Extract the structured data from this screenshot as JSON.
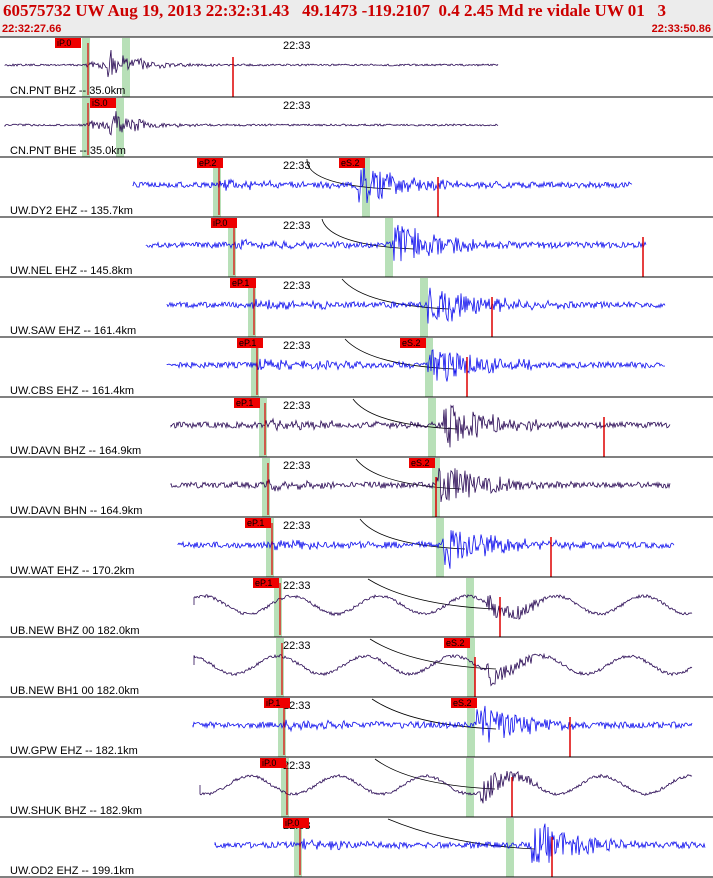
{
  "header": {
    "title": "60575732 UW Aug 19, 2013 22:32:31.43   49.1473 -119.2107  0.4 2.45 Md re vidale UW 01   3",
    "start_time": "22:32:27.66",
    "end_time": "22:33:50.86"
  },
  "time_tick_label": "22:33",
  "colors": {
    "trace_blue": "#1010ee",
    "trace_purple": "#2a0a55",
    "pick_red": "#dd0000",
    "pick_box": "#ee0000",
    "window_green": "#b8e0b8",
    "moveout_curve": "#000000"
  },
  "traces": [
    {
      "label": "CN.PNT BHZ -- 35.0km",
      "color": "purple",
      "p_pick": "iP.0",
      "s_pick": ""
    },
    {
      "label": "CN.PNT BHE -- 35.0km",
      "color": "purple",
      "p_pick": "",
      "s_pick": "iS.0"
    },
    {
      "label": "UW.DY2 EHZ -- 135.7km",
      "color": "blue",
      "p_pick": "eP.2",
      "s_pick": "eS.2"
    },
    {
      "label": "UW.NEL EHZ -- 145.8km",
      "color": "blue",
      "p_pick": "iP.0",
      "s_pick": ""
    },
    {
      "label": "UW.SAW EHZ -- 161.4km",
      "color": "blue",
      "p_pick": "eP.1",
      "s_pick": ""
    },
    {
      "label": "UW.CBS EHZ -- 161.4km",
      "color": "blue",
      "p_pick": "eP.1",
      "s_pick": "eS.2"
    },
    {
      "label": "UW.DAVN BHZ -- 164.9km",
      "color": "purple",
      "p_pick": "eP.1",
      "s_pick": ""
    },
    {
      "label": "UW.DAVN BHN -- 164.9km",
      "color": "purple",
      "p_pick": "",
      "s_pick": "eS.2"
    },
    {
      "label": "UW.WAT EHZ -- 170.2km",
      "color": "blue",
      "p_pick": "eP.1",
      "s_pick": ""
    },
    {
      "label": "UB.NEW BHZ 00 182.0km",
      "color": "purple",
      "p_pick": "eP.1",
      "s_pick": ""
    },
    {
      "label": "UB.NEW BH1 00 182.0km",
      "color": "purple",
      "p_pick": "",
      "s_pick": "eS.2"
    },
    {
      "label": "UW.GPW EHZ -- 182.1km",
      "color": "blue",
      "p_pick": "iP.1",
      "s_pick": "eS.2"
    },
    {
      "label": "UW.SHUK BHZ -- 182.9km",
      "color": "purple",
      "p_pick": "iP.0",
      "s_pick": ""
    },
    {
      "label": "UW.OD2 EHZ -- 199.1km",
      "color": "blue",
      "p_pick": "iP.0",
      "s_pick": ""
    }
  ]
}
